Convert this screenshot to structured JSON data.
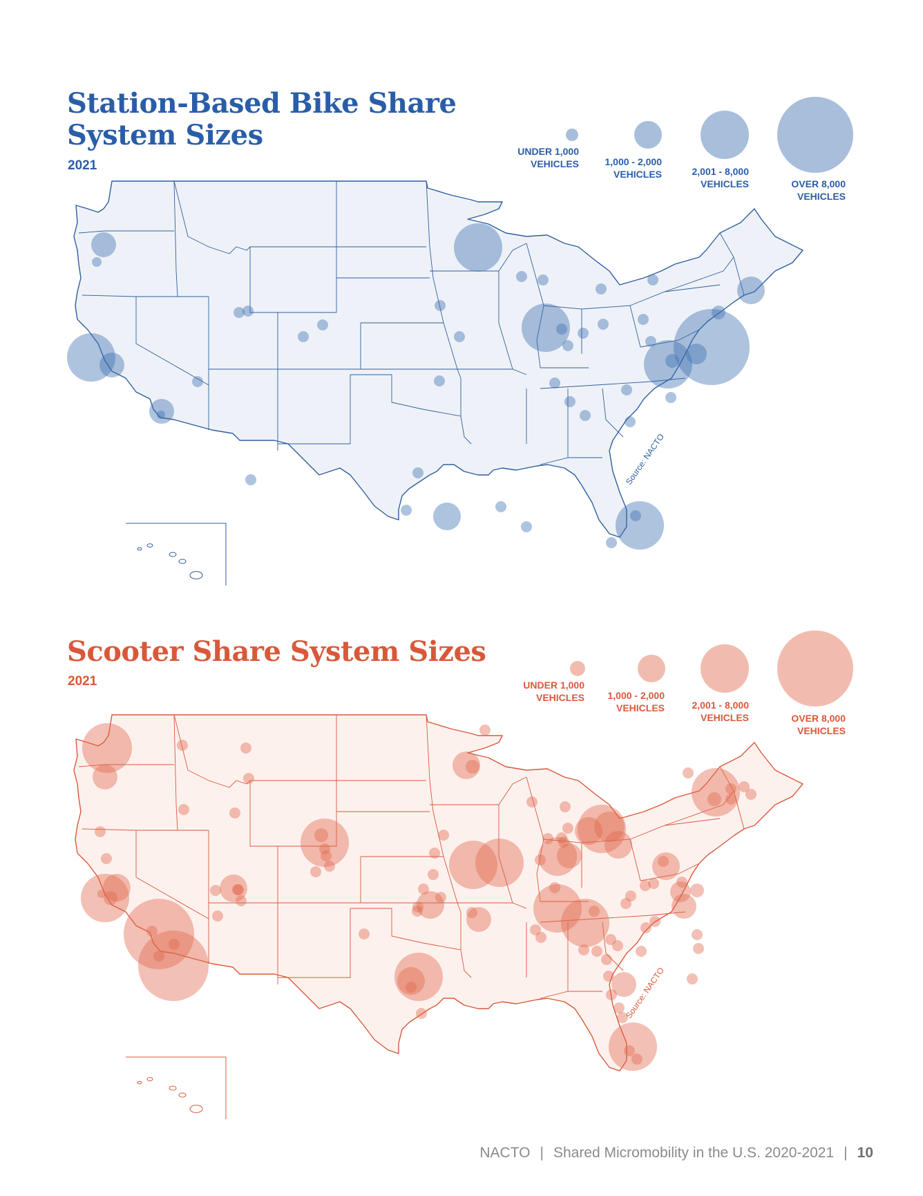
{
  "bike": {
    "title_line1": "Station-Based Bike Share",
    "title_line2": "System Sizes",
    "year": "2021",
    "color": "#3d6fb0",
    "fill": "#eef2f8",
    "stroke": "#2e5e9e",
    "legend": [
      {
        "line1": "UNDER 1,000",
        "line2": "VEHICLES"
      },
      {
        "line1": "1,000 - 2,000",
        "line2": "VEHICLES"
      },
      {
        "line1": "2,001 - 8,000",
        "line2": "VEHICLES"
      },
      {
        "line1": "OVER 8,000",
        "line2": "VEHICLES"
      }
    ],
    "source": "Source: NACTO"
  },
  "scooter": {
    "title": "Scooter Share System Sizes",
    "year": "2021",
    "color": "#e06a4e",
    "fill": "#fdf1ee",
    "stroke": "#d9583a",
    "legend": [
      {
        "line1": "UNDER 1,000",
        "line2": "VEHICLES"
      },
      {
        "line1": "1,000 - 2,000",
        "line2": "VEHICLES"
      },
      {
        "line1": "2,001 - 8,000",
        "line2": "VEHICLES"
      },
      {
        "line1": "OVER 8,000",
        "line2": "VEHICLES"
      }
    ],
    "source": "Source: NACTO"
  },
  "footer": {
    "org": "NACTO",
    "report": "Shared Micromobility in the U.S. 2020-2021",
    "page": "10"
  }
}
